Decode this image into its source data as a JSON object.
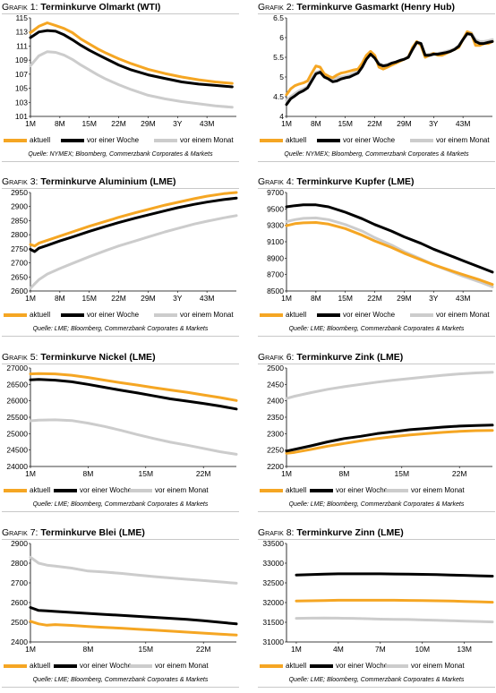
{
  "legend": {
    "items": [
      {
        "label": "aktuell",
        "color": "#f5a623"
      },
      {
        "label": "vor einer Woche",
        "color": "#000000"
      },
      {
        "label": "vor einem Monat",
        "color": "#cccccc"
      }
    ]
  },
  "chart_data": [
    {
      "type": "line",
      "label": "Grafik 1:",
      "title": "Terminkurve Olmarkt (WTI)",
      "source": "Quelle: NYMEX; Bloomberg, Commerzbank Corporates & Markets",
      "x": [
        1,
        3,
        5,
        7,
        9,
        11,
        13,
        15,
        17,
        19,
        22,
        25,
        29,
        33,
        37,
        41,
        45,
        49
      ],
      "xticks": [
        {
          "label": "1M",
          "x": 1
        },
        {
          "label": "8M",
          "x": 8
        },
        {
          "label": "15M",
          "x": 15
        },
        {
          "label": "22M",
          "x": 22
        },
        {
          "label": "29M",
          "x": 29
        },
        {
          "label": "3Y",
          "x": 36
        },
        {
          "label": "43M",
          "x": 43
        }
      ],
      "xlim": [
        1,
        50
      ],
      "ylim": [
        101,
        115
      ],
      "yticks": [
        101,
        103,
        105,
        107,
        109,
        111,
        113,
        115
      ],
      "series": [
        {
          "name": "aktuell",
          "values": [
            112.9,
            113.8,
            114.3,
            113.9,
            113.5,
            112.9,
            112.0,
            111.3,
            110.6,
            110.0,
            109.2,
            108.5,
            107.7,
            107.1,
            106.6,
            106.2,
            105.9,
            105.7
          ]
        },
        {
          "name": "vor einer Woche",
          "values": [
            112.2,
            113.0,
            113.2,
            113.1,
            112.6,
            111.9,
            111.1,
            110.4,
            109.8,
            109.2,
            108.3,
            107.6,
            106.9,
            106.4,
            105.9,
            105.6,
            105.4,
            105.2
          ]
        },
        {
          "name": "vor einem Monat",
          "values": [
            108.2,
            109.6,
            110.2,
            110.1,
            109.7,
            109.1,
            108.3,
            107.6,
            106.9,
            106.3,
            105.5,
            104.8,
            104.0,
            103.5,
            103.1,
            102.8,
            102.5,
            102.3
          ]
        }
      ]
    },
    {
      "type": "line",
      "label": "Grafik 2:",
      "title": "Terminkurve Gasmarkt (Henry Hub)",
      "source": "Quelle: NYMEX; Bloomberg, Commerzbank Corporates & Markets",
      "x": [
        1,
        2,
        3,
        4,
        5,
        6,
        7,
        8,
        9,
        10,
        11,
        12,
        13,
        14,
        15,
        16,
        17,
        18,
        19,
        20,
        21,
        22,
        23,
        24,
        25,
        26,
        27,
        28,
        29,
        30,
        31,
        32,
        33,
        34,
        35,
        36,
        37,
        38,
        39,
        40,
        41,
        42,
        43,
        44,
        45,
        46,
        47,
        48,
        49,
        50
      ],
      "xticks": [
        {
          "label": "1M",
          "x": 1
        },
        {
          "label": "8M",
          "x": 8
        },
        {
          "label": "15M",
          "x": 15
        },
        {
          "label": "22M",
          "x": 22
        },
        {
          "label": "29M",
          "x": 29
        },
        {
          "label": "3Y",
          "x": 36
        },
        {
          "label": "43M",
          "x": 43
        }
      ],
      "xlim": [
        1,
        50
      ],
      "ylim": [
        4.0,
        6.5
      ],
      "yticks": [
        4.0,
        4.5,
        5.0,
        5.5,
        6.0,
        6.5
      ],
      "series": [
        {
          "name": "aktuell",
          "values": [
            4.55,
            4.7,
            4.78,
            4.82,
            4.85,
            4.9,
            5.1,
            5.28,
            5.25,
            5.08,
            5.02,
            4.98,
            5.05,
            5.1,
            5.12,
            5.15,
            5.18,
            5.2,
            5.35,
            5.55,
            5.65,
            5.55,
            5.25,
            5.2,
            5.25,
            5.3,
            5.35,
            5.4,
            5.45,
            5.5,
            5.75,
            5.9,
            5.8,
            5.5,
            5.55,
            5.6,
            5.55,
            5.55,
            5.6,
            5.65,
            5.7,
            5.75,
            5.95,
            6.15,
            6.1,
            5.8,
            5.8,
            5.85,
            5.85,
            5.9
          ]
        },
        {
          "name": "vor einer Woche",
          "values": [
            4.3,
            4.45,
            4.52,
            4.6,
            4.65,
            4.72,
            4.9,
            5.08,
            5.12,
            5.0,
            4.95,
            4.88,
            4.9,
            4.95,
            4.98,
            5.0,
            5.05,
            5.1,
            5.25,
            5.45,
            5.58,
            5.48,
            5.32,
            5.28,
            5.3,
            5.35,
            5.38,
            5.42,
            5.45,
            5.5,
            5.7,
            5.88,
            5.85,
            5.55,
            5.55,
            5.58,
            5.58,
            5.6,
            5.62,
            5.65,
            5.7,
            5.78,
            5.95,
            6.1,
            6.08,
            5.9,
            5.85,
            5.85,
            5.88,
            5.9
          ]
        },
        {
          "name": "vor einem Monat",
          "values": [
            4.4,
            4.5,
            4.58,
            4.65,
            4.7,
            4.75,
            4.95,
            5.12,
            5.15,
            5.05,
            5.0,
            4.95,
            4.98,
            5.0,
            5.02,
            5.05,
            5.1,
            5.15,
            5.28,
            5.48,
            5.58,
            5.5,
            5.35,
            5.3,
            5.32,
            5.35,
            5.38,
            5.42,
            5.45,
            5.52,
            5.72,
            5.9,
            5.85,
            5.55,
            5.58,
            5.6,
            5.6,
            5.62,
            5.65,
            5.68,
            5.72,
            5.8,
            5.95,
            6.15,
            6.12,
            5.95,
            5.9,
            5.9,
            5.92,
            5.95
          ]
        }
      ]
    },
    {
      "type": "line",
      "label": "Grafik 3:",
      "title": "Terminkurve Aluminium (LME)",
      "source": "Quelle: LME; Bloomberg, Commerzbank Corporates & Markets",
      "x": [
        1,
        2,
        3,
        5,
        8,
        11,
        15,
        19,
        22,
        26,
        29,
        33,
        36,
        40,
        43,
        47,
        50
      ],
      "xticks": [
        {
          "label": "1M",
          "x": 1
        },
        {
          "label": "8M",
          "x": 8
        },
        {
          "label": "15M",
          "x": 15
        },
        {
          "label": "22M",
          "x": 22
        },
        {
          "label": "29M",
          "x": 29
        },
        {
          "label": "3Y",
          "x": 36
        },
        {
          "label": "43M",
          "x": 43
        }
      ],
      "xlim": [
        1,
        50
      ],
      "ylim": [
        2600,
        2950
      ],
      "yticks": [
        2600,
        2650,
        2700,
        2750,
        2800,
        2850,
        2900,
        2950
      ],
      "series": [
        {
          "name": "aktuell",
          "values": [
            2765,
            2760,
            2770,
            2780,
            2795,
            2810,
            2830,
            2848,
            2862,
            2878,
            2890,
            2905,
            2915,
            2928,
            2937,
            2946,
            2950
          ]
        },
        {
          "name": "vor einer Woche",
          "values": [
            2748,
            2740,
            2752,
            2762,
            2778,
            2792,
            2812,
            2830,
            2843,
            2859,
            2870,
            2885,
            2896,
            2908,
            2916,
            2925,
            2930
          ]
        },
        {
          "name": "vor einem Monat",
          "values": [
            2610,
            2625,
            2640,
            2660,
            2680,
            2698,
            2722,
            2744,
            2760,
            2778,
            2792,
            2810,
            2822,
            2838,
            2848,
            2860,
            2868
          ]
        }
      ]
    },
    {
      "type": "line",
      "label": "Grafik 4:",
      "title": "Terminkurve Kupfer (LME)",
      "source": "Quelle: LME; Bloomberg, Commerzbank Corporates & Markets",
      "x": [
        1,
        3,
        5,
        8,
        11,
        15,
        19,
        22,
        26,
        29,
        33,
        36,
        40,
        43,
        47,
        50
      ],
      "xticks": [
        {
          "label": "1M",
          "x": 1
        },
        {
          "label": "8M",
          "x": 8
        },
        {
          "label": "15M",
          "x": 15
        },
        {
          "label": "22M",
          "x": 22
        },
        {
          "label": "29M",
          "x": 29
        },
        {
          "label": "3Y",
          "x": 36
        },
        {
          "label": "43M",
          "x": 43
        }
      ],
      "xlim": [
        1,
        50
      ],
      "ylim": [
        8500,
        9700
      ],
      "yticks": [
        8500,
        8700,
        8900,
        9100,
        9300,
        9500,
        9700
      ],
      "series": [
        {
          "name": "aktuell",
          "values": [
            9295,
            9320,
            9330,
            9335,
            9315,
            9260,
            9180,
            9110,
            9030,
            8960,
            8880,
            8820,
            8750,
            8700,
            8635,
            8580
          ]
        },
        {
          "name": "vor einer Woche",
          "values": [
            9525,
            9540,
            9550,
            9550,
            9525,
            9460,
            9380,
            9310,
            9230,
            9160,
            9080,
            9010,
            8930,
            8870,
            8790,
            8730
          ]
        },
        {
          "name": "vor einem Monat",
          "values": [
            9345,
            9370,
            9385,
            9390,
            9370,
            9310,
            9230,
            9150,
            9060,
            8980,
            8890,
            8820,
            8740,
            8680,
            8610,
            8550
          ]
        }
      ]
    },
    {
      "type": "line",
      "label": "Grafik 5:",
      "title": " Terminkurve Nickel (LME)",
      "source": "Quelle: LME; Bloomberg, Commerzbank Corporates & Markets",
      "x": [
        1,
        2,
        4,
        6,
        8,
        10,
        12,
        14,
        16,
        18,
        20,
        22,
        24,
        26
      ],
      "xticks": [
        {
          "label": "1M",
          "x": 1
        },
        {
          "label": "8M",
          "x": 8
        },
        {
          "label": "15M",
          "x": 15
        },
        {
          "label": "22M",
          "x": 22
        }
      ],
      "xlim": [
        1,
        26
      ],
      "ylim": [
        24000,
        27000
      ],
      "yticks": [
        24000,
        24500,
        25000,
        25500,
        26000,
        26500,
        27000
      ],
      "series": [
        {
          "name": "aktuell",
          "values": [
            26820,
            26830,
            26820,
            26780,
            26710,
            26630,
            26550,
            26480,
            26400,
            26330,
            26260,
            26180,
            26100,
            26010
          ]
        },
        {
          "name": "vor einer Woche",
          "values": [
            26640,
            26650,
            26630,
            26580,
            26500,
            26410,
            26320,
            26240,
            26150,
            26060,
            25990,
            25920,
            25840,
            25750
          ]
        },
        {
          "name": "vor einem Monat",
          "values": [
            25390,
            25410,
            25420,
            25400,
            25320,
            25220,
            25100,
            24970,
            24850,
            24740,
            24650,
            24550,
            24450,
            24370
          ]
        }
      ]
    },
    {
      "type": "line",
      "label": "Grafik 6:",
      "title": "Terminkurve Zink (LME)",
      "source": "Quelle: LME; Bloomberg, Commerzbank Corporates & Markets",
      "x": [
        1,
        2,
        4,
        6,
        8,
        10,
        12,
        14,
        16,
        18,
        20,
        22,
        24,
        26
      ],
      "xticks": [
        {
          "label": "1M",
          "x": 1
        },
        {
          "label": "8M",
          "x": 8
        },
        {
          "label": "15M",
          "x": 15
        },
        {
          "label": "22M",
          "x": 22
        }
      ],
      "xlim": [
        1,
        26
      ],
      "ylim": [
        2200,
        2500
      ],
      "yticks": [
        2200,
        2250,
        2300,
        2350,
        2400,
        2450,
        2500
      ],
      "series": [
        {
          "name": "aktuell",
          "values": [
            2240,
            2243,
            2252,
            2262,
            2270,
            2278,
            2285,
            2291,
            2296,
            2300,
            2304,
            2307,
            2309,
            2310
          ]
        },
        {
          "name": "vor einer Woche",
          "values": [
            2247,
            2252,
            2263,
            2275,
            2285,
            2292,
            2300,
            2306,
            2312,
            2316,
            2320,
            2323,
            2325,
            2326
          ]
        },
        {
          "name": "vor einem Monat",
          "values": [
            2407,
            2414,
            2425,
            2435,
            2443,
            2450,
            2457,
            2463,
            2468,
            2473,
            2478,
            2482,
            2485,
            2487
          ]
        }
      ]
    },
    {
      "type": "line",
      "label": "Grafik 7:",
      "title": "Terminkurve Blei (LME)",
      "source": "Quelle: LME; Bloomberg, Commerzbank Corporates & Markets",
      "x": [
        1,
        2,
        3,
        4,
        6,
        8,
        10,
        12,
        14,
        16,
        18,
        20,
        22,
        24,
        26
      ],
      "xticks": [
        {
          "label": "1M",
          "x": 1
        },
        {
          "label": "8M",
          "x": 8
        },
        {
          "label": "15M",
          "x": 15
        },
        {
          "label": "22M",
          "x": 22
        }
      ],
      "xlim": [
        1,
        26
      ],
      "ylim": [
        2400,
        2900
      ],
      "yticks": [
        2400,
        2500,
        2600,
        2700,
        2800,
        2900
      ],
      "series": [
        {
          "name": "aktuell",
          "values": [
            2505,
            2492,
            2485,
            2488,
            2484,
            2478,
            2474,
            2470,
            2465,
            2460,
            2455,
            2450,
            2445,
            2440,
            2435
          ]
        },
        {
          "name": "vor einer Woche",
          "values": [
            2575,
            2560,
            2558,
            2555,
            2550,
            2545,
            2540,
            2535,
            2530,
            2525,
            2520,
            2515,
            2508,
            2500,
            2492
          ]
        },
        {
          "name": "vor einem Monat",
          "values": [
            2830,
            2800,
            2790,
            2785,
            2775,
            2760,
            2755,
            2748,
            2740,
            2732,
            2725,
            2718,
            2712,
            2705,
            2698
          ]
        }
      ]
    },
    {
      "type": "line",
      "label": "Grafik 8:",
      "title": "Terminkurve Zinn (LME)",
      "source": "Quelle: LME; Bloomberg, Commerzbank Corporates & Markets",
      "x": [
        1,
        2,
        3,
        4,
        5,
        6,
        7,
        8,
        9,
        10,
        11,
        12,
        13,
        14,
        15
      ],
      "xticks": [
        {
          "label": "1M",
          "x": 1
        },
        {
          "label": "4M",
          "x": 4
        },
        {
          "label": "7M",
          "x": 7
        },
        {
          "label": "10M",
          "x": 10
        },
        {
          "label": "13M",
          "x": 13
        }
      ],
      "xlim": [
        0.3,
        15
      ],
      "ylim": [
        31000,
        33500
      ],
      "yticks": [
        31000,
        31500,
        32000,
        32500,
        33000,
        33500
      ],
      "series": [
        {
          "name": "aktuell",
          "values": [
            32040,
            32045,
            32050,
            32060,
            32060,
            32060,
            32060,
            32060,
            32055,
            32050,
            32045,
            32040,
            32030,
            32020,
            32010
          ]
        },
        {
          "name": "vor einer Woche",
          "values": [
            32700,
            32710,
            32720,
            32730,
            32730,
            32730,
            32730,
            32725,
            32720,
            32715,
            32710,
            32700,
            32690,
            32680,
            32670
          ]
        },
        {
          "name": "vor einem Monat",
          "values": [
            31600,
            31605,
            31610,
            31605,
            31600,
            31590,
            31580,
            31575,
            31570,
            31560,
            31550,
            31540,
            31530,
            31520,
            31510
          ]
        }
      ]
    }
  ]
}
